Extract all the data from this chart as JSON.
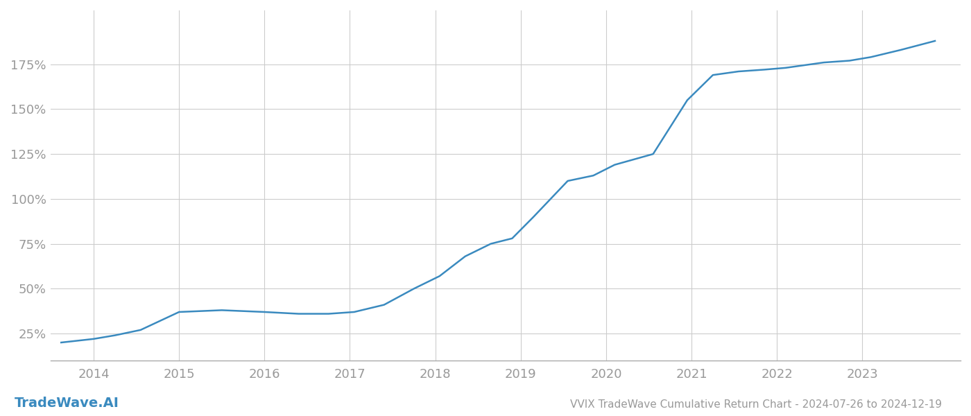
{
  "title": "VVIX TradeWave Cumulative Return Chart - 2024-07-26 to 2024-12-19",
  "watermark": "TradeWave.AI",
  "line_color": "#3a8abf",
  "background_color": "#ffffff",
  "grid_color": "#cccccc",
  "x_values": [
    2013.62,
    2014.0,
    2014.25,
    2014.55,
    2015.0,
    2015.5,
    2016.0,
    2016.4,
    2016.75,
    2017.05,
    2017.4,
    2017.75,
    2018.05,
    2018.35,
    2018.65,
    2018.9,
    2019.15,
    2019.55,
    2019.85,
    2020.1,
    2020.55,
    2020.95,
    2021.25,
    2021.55,
    2021.85,
    2022.1,
    2022.55,
    2022.85,
    2023.1,
    2023.45,
    2023.85
  ],
  "y_values": [
    20,
    22,
    24,
    27,
    37,
    38,
    37,
    36,
    36,
    37,
    41,
    50,
    57,
    68,
    75,
    78,
    90,
    110,
    113,
    119,
    125,
    155,
    169,
    171,
    172,
    173,
    176,
    177,
    179,
    183,
    188
  ],
  "xlim": [
    2013.5,
    2024.15
  ],
  "ylim": [
    10,
    205
  ],
  "yticks": [
    25,
    50,
    75,
    100,
    125,
    150,
    175
  ],
  "xticks": [
    2014,
    2015,
    2016,
    2017,
    2018,
    2019,
    2020,
    2021,
    2022,
    2023
  ],
  "tick_label_color": "#999999",
  "line_width": 1.8,
  "title_fontsize": 11,
  "tick_fontsize": 13,
  "watermark_fontsize": 14
}
